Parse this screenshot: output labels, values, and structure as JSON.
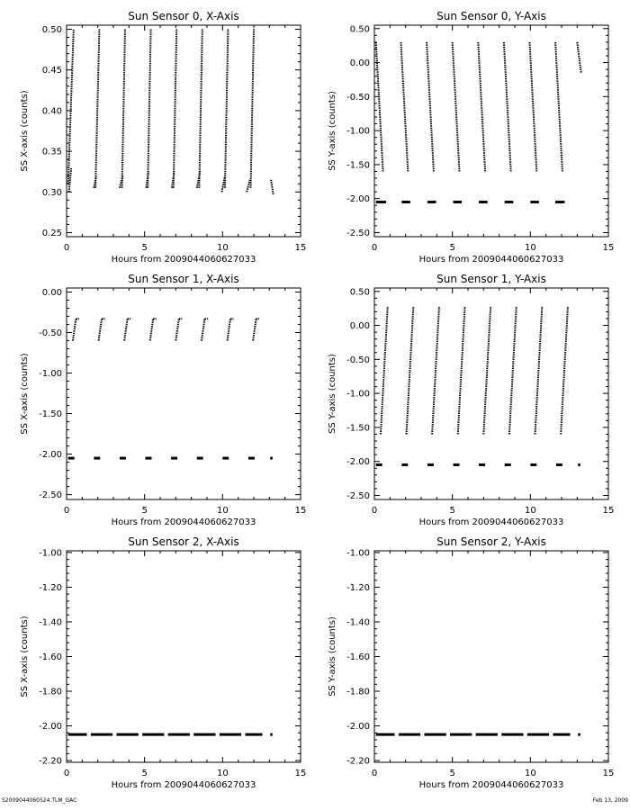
{
  "footer": {
    "left": "S2009044060524.TLM_GAC",
    "right": "Feb 13, 2009"
  },
  "chart_data": [
    {
      "type": "scatter",
      "title": "Sun Sensor 0, X-Axis",
      "xlabel": "Hours from 2009044060627033",
      "ylabel": "SS X-axis (counts)",
      "xlim": [
        0,
        15
      ],
      "ylim": [
        0.245,
        0.505
      ],
      "xticks": [
        0,
        5,
        10,
        15
      ],
      "yticks": [
        0.25,
        0.3,
        0.35,
        0.4,
        0.45,
        0.5
      ],
      "ytick_labels": [
        "0.25",
        "0.30",
        "0.35",
        "0.40",
        "0.45",
        "0.50"
      ],
      "segments": [
        {
          "x": [
            0.1,
            0.45
          ],
          "y": [
            0.31,
            0.5
          ]
        },
        {
          "x": [
            0.15,
            0.3
          ],
          "y": [
            0.3,
            0.33
          ]
        },
        {
          "x": [
            1.85,
            2.1
          ],
          "y": [
            0.305,
            0.5
          ]
        },
        {
          "x": [
            1.75,
            1.9
          ],
          "y": [
            0.305,
            0.32
          ]
        },
        {
          "x": [
            3.55,
            3.75
          ],
          "y": [
            0.305,
            0.5
          ]
        },
        {
          "x": [
            3.4,
            3.6
          ],
          "y": [
            0.305,
            0.32
          ]
        },
        {
          "x": [
            5.2,
            5.4
          ],
          "y": [
            0.305,
            0.5
          ]
        },
        {
          "x": [
            5.1,
            5.25
          ],
          "y": [
            0.305,
            0.325
          ]
        },
        {
          "x": [
            6.85,
            7.05
          ],
          "y": [
            0.305,
            0.5
          ]
        },
        {
          "x": [
            6.75,
            6.9
          ],
          "y": [
            0.305,
            0.325
          ]
        },
        {
          "x": [
            8.5,
            8.7
          ],
          "y": [
            0.305,
            0.5
          ]
        },
        {
          "x": [
            8.35,
            8.55
          ],
          "y": [
            0.305,
            0.325
          ]
        },
        {
          "x": [
            10.15,
            10.35
          ],
          "y": [
            0.305,
            0.5
          ]
        },
        {
          "x": [
            9.95,
            10.15
          ],
          "y": [
            0.3,
            0.32
          ]
        },
        {
          "x": [
            11.8,
            12.0
          ],
          "y": [
            0.305,
            0.5
          ]
        },
        {
          "x": [
            11.55,
            11.75
          ],
          "y": [
            0.3,
            0.315
          ]
        },
        {
          "x": [
            13.1,
            13.25
          ],
          "y": [
            0.315,
            0.297
          ]
        }
      ],
      "flat_y": null
    },
    {
      "type": "scatter",
      "title": "Sun Sensor 0, Y-Axis",
      "xlabel": "Hours from 2009044060627033",
      "ylabel": "SS Y-axis (counts)",
      "xlim": [
        0,
        15
      ],
      "ylim": [
        -2.56,
        0.55
      ],
      "xticks": [
        0,
        5,
        10,
        15
      ],
      "yticks": [
        -2.5,
        -2.0,
        -1.5,
        -1.0,
        -0.5,
        0.0,
        0.5
      ],
      "ytick_labels": [
        "-2.50",
        "-2.00",
        "-1.50",
        "-1.00",
        "-0.50",
        "0.00",
        "0.50"
      ],
      "segments": [
        {
          "x": [
            0.1,
            0.55
          ],
          "y": [
            0.3,
            -1.6
          ]
        },
        {
          "x": [
            1.7,
            2.15
          ],
          "y": [
            0.3,
            -1.6
          ]
        },
        {
          "x": [
            3.35,
            3.8
          ],
          "y": [
            0.3,
            -1.6
          ]
        },
        {
          "x": [
            5.0,
            5.45
          ],
          "y": [
            0.3,
            -1.6
          ]
        },
        {
          "x": [
            6.65,
            7.1
          ],
          "y": [
            0.3,
            -1.6
          ]
        },
        {
          "x": [
            8.3,
            8.75
          ],
          "y": [
            0.3,
            -1.6
          ]
        },
        {
          "x": [
            9.95,
            10.4
          ],
          "y": [
            0.3,
            -1.6
          ]
        },
        {
          "x": [
            11.6,
            12.05
          ],
          "y": [
            0.3,
            -1.6
          ]
        },
        {
          "x": [
            13.0,
            13.25
          ],
          "y": [
            0.3,
            -0.15
          ]
        }
      ],
      "flat_y": -2.05,
      "flat_segments": [
        [
          0.1,
          0.75
        ],
        [
          1.75,
          2.3
        ],
        [
          3.4,
          3.95
        ],
        [
          5.05,
          5.6
        ],
        [
          6.7,
          7.25
        ],
        [
          8.35,
          8.9
        ],
        [
          10.0,
          10.55
        ],
        [
          11.6,
          12.2
        ]
      ]
    },
    {
      "type": "scatter",
      "title": "Sun Sensor 1, X-Axis",
      "xlabel": "Hours from 2009044060627033",
      "ylabel": "SS X-axis (counts)",
      "xlim": [
        0,
        15
      ],
      "ylim": [
        -2.56,
        0.05
      ],
      "xticks": [
        0,
        5,
        10,
        15
      ],
      "yticks": [
        -2.5,
        -2.0,
        -1.5,
        -1.0,
        -0.5,
        0.0
      ],
      "ytick_labels": [
        "-2.50",
        "-2.00",
        "-1.50",
        "-1.00",
        "-0.50",
        "0.00"
      ],
      "segments": [
        {
          "x": [
            0.4,
            0.6
          ],
          "y": [
            -0.6,
            -0.33
          ]
        },
        {
          "x": [
            0.6,
            0.8
          ],
          "y": [
            -0.33,
            -0.33
          ]
        },
        {
          "x": [
            2.05,
            2.25
          ],
          "y": [
            -0.6,
            -0.33
          ]
        },
        {
          "x": [
            2.25,
            2.45
          ],
          "y": [
            -0.33,
            -0.33
          ]
        },
        {
          "x": [
            3.7,
            3.9
          ],
          "y": [
            -0.6,
            -0.33
          ]
        },
        {
          "x": [
            3.9,
            4.1
          ],
          "y": [
            -0.33,
            -0.33
          ]
        },
        {
          "x": [
            5.35,
            5.55
          ],
          "y": [
            -0.6,
            -0.33
          ]
        },
        {
          "x": [
            5.55,
            5.75
          ],
          "y": [
            -0.33,
            -0.33
          ]
        },
        {
          "x": [
            7.0,
            7.2
          ],
          "y": [
            -0.6,
            -0.33
          ]
        },
        {
          "x": [
            7.2,
            7.4
          ],
          "y": [
            -0.33,
            -0.33
          ]
        },
        {
          "x": [
            8.65,
            8.85
          ],
          "y": [
            -0.6,
            -0.33
          ]
        },
        {
          "x": [
            8.85,
            9.05
          ],
          "y": [
            -0.33,
            -0.33
          ]
        },
        {
          "x": [
            10.3,
            10.5
          ],
          "y": [
            -0.6,
            -0.33
          ]
        },
        {
          "x": [
            10.5,
            10.7
          ],
          "y": [
            -0.33,
            -0.33
          ]
        },
        {
          "x": [
            11.95,
            12.15
          ],
          "y": [
            -0.6,
            -0.33
          ]
        },
        {
          "x": [
            12.15,
            12.35
          ],
          "y": [
            -0.33,
            -0.33
          ]
        }
      ],
      "flat_y": -2.05,
      "flat_segments": [
        [
          0.1,
          0.5
        ],
        [
          1.75,
          2.15
        ],
        [
          3.4,
          3.8
        ],
        [
          5.05,
          5.45
        ],
        [
          6.7,
          7.1
        ],
        [
          8.35,
          8.75
        ],
        [
          10.0,
          10.4
        ],
        [
          11.65,
          12.05
        ],
        [
          13.05,
          13.2
        ]
      ]
    },
    {
      "type": "scatter",
      "title": "Sun Sensor 1, Y-Axis",
      "xlabel": "Hours from 2009044060627033",
      "ylabel": "SS Y-axis (counts)",
      "xlim": [
        0,
        15
      ],
      "ylim": [
        -2.56,
        0.55
      ],
      "xticks": [
        0,
        5,
        10,
        15
      ],
      "yticks": [
        -2.5,
        -2.0,
        -1.5,
        -1.0,
        -0.5,
        0.0,
        0.5
      ],
      "ytick_labels": [
        "-2.50",
        "-2.00",
        "-1.50",
        "-1.00",
        "-0.50",
        "0.00",
        "0.50"
      ],
      "segments": [
        {
          "x": [
            0.4,
            0.85
          ],
          "y": [
            -1.6,
            0.28
          ]
        },
        {
          "x": [
            2.05,
            2.5
          ],
          "y": [
            -1.6,
            0.28
          ]
        },
        {
          "x": [
            3.7,
            4.15
          ],
          "y": [
            -1.6,
            0.28
          ]
        },
        {
          "x": [
            5.35,
            5.8
          ],
          "y": [
            -1.6,
            0.28
          ]
        },
        {
          "x": [
            7.0,
            7.45
          ],
          "y": [
            -1.6,
            0.28
          ]
        },
        {
          "x": [
            8.65,
            9.1
          ],
          "y": [
            -1.6,
            0.28
          ]
        },
        {
          "x": [
            10.3,
            10.75
          ],
          "y": [
            -1.6,
            0.28
          ]
        },
        {
          "x": [
            11.95,
            12.4
          ],
          "y": [
            -1.6,
            0.28
          ]
        }
      ],
      "flat_y": -2.05,
      "flat_segments": [
        [
          0.1,
          0.5
        ],
        [
          1.75,
          2.15
        ],
        [
          3.4,
          3.8
        ],
        [
          5.05,
          5.45
        ],
        [
          6.7,
          7.1
        ],
        [
          8.35,
          8.75
        ],
        [
          10.0,
          10.4
        ],
        [
          11.65,
          12.05
        ],
        [
          13.05,
          13.2
        ]
      ]
    },
    {
      "type": "scatter",
      "title": "Sun Sensor 2, X-Axis",
      "xlabel": "Hours from 2009044060627033",
      "ylabel": "SS X-axis (counts)",
      "xlim": [
        0,
        15
      ],
      "ylim": [
        -2.21,
        -0.99
      ],
      "xticks": [
        0,
        5,
        10,
        15
      ],
      "yticks": [
        -2.2,
        -2.0,
        -1.8,
        -1.6,
        -1.4,
        -1.2,
        -1.0
      ],
      "ytick_labels": [
        "-2.20",
        "-2.00",
        "-1.80",
        "-1.60",
        "-1.40",
        "-1.20",
        "-1.00"
      ],
      "segments": [],
      "flat_y": -2.05,
      "flat_segments": [
        [
          0.1,
          1.3
        ],
        [
          1.55,
          2.95
        ],
        [
          3.2,
          4.6
        ],
        [
          4.85,
          6.25
        ],
        [
          6.5,
          7.9
        ],
        [
          8.15,
          9.55
        ],
        [
          9.8,
          11.2
        ],
        [
          11.45,
          12.55
        ],
        [
          13.05,
          13.2
        ]
      ]
    },
    {
      "type": "scatter",
      "title": "Sun Sensor 2, Y-Axis",
      "xlabel": "Hours from 2009044060627033",
      "ylabel": "SS Y-axis (counts)",
      "xlim": [
        0,
        15
      ],
      "ylim": [
        -2.21,
        -0.99
      ],
      "xticks": [
        0,
        5,
        10,
        15
      ],
      "yticks": [
        -2.2,
        -2.0,
        -1.8,
        -1.6,
        -1.4,
        -1.2,
        -1.0
      ],
      "ytick_labels": [
        "-2.20",
        "-2.00",
        "-1.80",
        "-1.60",
        "-1.40",
        "-1.20",
        "-1.00"
      ],
      "segments": [],
      "flat_y": -2.05,
      "flat_segments": [
        [
          0.1,
          1.3
        ],
        [
          1.55,
          2.95
        ],
        [
          3.2,
          4.6
        ],
        [
          4.85,
          6.25
        ],
        [
          6.5,
          7.9
        ],
        [
          8.15,
          9.55
        ],
        [
          9.8,
          11.2
        ],
        [
          11.45,
          12.55
        ],
        [
          13.05,
          13.2
        ]
      ]
    }
  ]
}
